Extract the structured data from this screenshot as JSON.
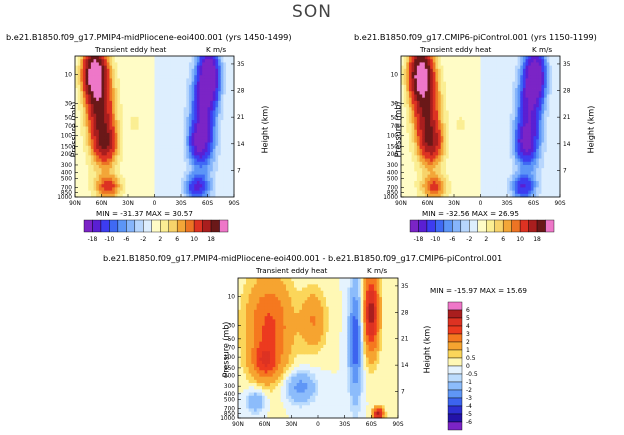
{
  "main_title": "SON",
  "palette": {
    "levels": [
      "-18",
      "-10",
      "-6",
      "-2",
      "2",
      "6",
      "10",
      "18"
    ],
    "colors": [
      "#7b24c6",
      "#5a1fd3",
      "#3d3cf0",
      "#3f69f4",
      "#5c95f7",
      "#86b5fb",
      "#b7d6fd",
      "#ddeefe",
      "#fffcc6",
      "#fbee93",
      "#f7d36b",
      "#f3a638",
      "#ec7424",
      "#dd3222",
      "#a91e1e",
      "#6a1818",
      "#ee77c8"
    ]
  },
  "chart_data": [
    {
      "type": "heatmap",
      "title": "b.e21.B1850.f09_g17.PMIP4-midPliocene-eoi400.001 (yrs 1450-1499)",
      "subtitle_left": "Transient eddy heat",
      "units": "K m/s",
      "xlabel": "",
      "ylabel": "Pressure (mb)",
      "y2label": "Height (km)",
      "x_ticks": [
        "90N",
        "60N",
        "30N",
        "0",
        "30S",
        "60S",
        "90S"
      ],
      "y_ticks": [
        "10",
        "30",
        "50",
        "70",
        "100",
        "150",
        "200",
        "300",
        "400",
        "500",
        "700",
        "850",
        "1000"
      ],
      "y2_ticks": [
        "35",
        "28",
        "21",
        "14",
        "7"
      ],
      "min": -31.37,
      "max": 30.57,
      "stats_text": "MIN = -31.37   MAX = 30.57",
      "colorbar_labels": [
        "-18",
        "-10",
        "-6",
        "-2",
        "2",
        "6",
        "10",
        "18"
      ]
    },
    {
      "type": "heatmap",
      "title": "b.e21.B1850.f09_g17.CMIP6-piControl.001 (yrs 1150-1199)",
      "subtitle_left": "Transient eddy heat",
      "units": "K m/s",
      "xlabel": "",
      "ylabel": "Pressure (mb)",
      "y2label": "Height (km)",
      "x_ticks": [
        "90N",
        "60N",
        "30N",
        "0",
        "30S",
        "60S",
        "90S"
      ],
      "y_ticks": [
        "10",
        "30",
        "50",
        "70",
        "100",
        "150",
        "200",
        "300",
        "400",
        "500",
        "700",
        "850",
        "1000"
      ],
      "y2_ticks": [
        "35",
        "28",
        "21",
        "14",
        "7"
      ],
      "min": -32.56,
      "max": 26.95,
      "stats_text": "MIN = -32.56   MAX = 26.95",
      "colorbar_labels": [
        "-18",
        "-10",
        "-6",
        "-2",
        "2",
        "6",
        "10",
        "18"
      ]
    },
    {
      "type": "heatmap",
      "title": "b.e21.B1850.f09_g17.PMIP4-midPliocene-eoi400.001  -  b.e21.B1850.f09_g17.CMIP6-piControl.001",
      "subtitle_left": "Transient eddy heat",
      "units": "K m/s",
      "xlabel": "",
      "ylabel": "Pressure (mb)",
      "y2label": "Height (km)",
      "x_ticks": [
        "90N",
        "60N",
        "30N",
        "0",
        "30S",
        "60S",
        "90S"
      ],
      "y_ticks": [
        "10",
        "30",
        "50",
        "70",
        "100",
        "150",
        "200",
        "300",
        "400",
        "500",
        "700",
        "850",
        "1000"
      ],
      "y2_ticks": [
        "35",
        "28",
        "21",
        "14",
        "7"
      ],
      "min": -15.97,
      "max": 15.69,
      "stats_text": "MIN = -15.97    MAX = 15.69",
      "colorbar_labels": [
        "6",
        "5",
        "4",
        "3",
        "2",
        "1",
        "0.5",
        "0",
        "-0.5",
        "-1",
        "-2",
        "-3",
        "-4",
        "-5",
        "-6"
      ],
      "colorbar_colors": [
        "#ee77c8",
        "#a91e1e",
        "#dd3222",
        "#ec3a1f",
        "#f5781f",
        "#f6a430",
        "#fbd65a",
        "#fff8b5",
        "#e5f3fe",
        "#bcdcfd",
        "#8cbcfb",
        "#5f96f6",
        "#3c64ef",
        "#2d2fd1",
        "#2313a8",
        "#7b24c6"
      ]
    }
  ]
}
